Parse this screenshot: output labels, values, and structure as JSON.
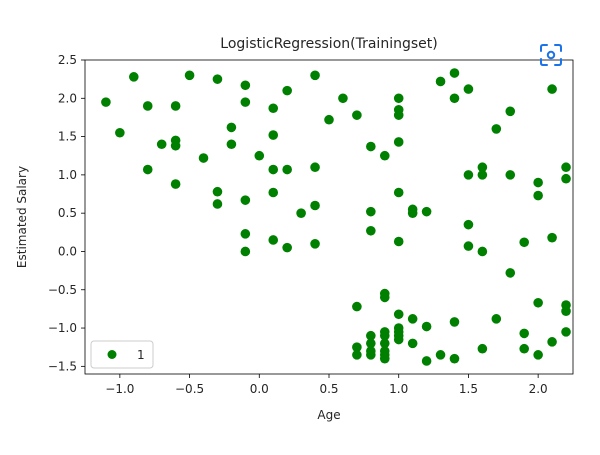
{
  "chart_data": {
    "type": "scatter",
    "title": "LogisticRegression(Trainingset)",
    "xlabel": "Age",
    "ylabel": "Estimated Salary",
    "xlim": [
      -1.25,
      2.25
    ],
    "ylim": [
      -1.6,
      2.5
    ],
    "xticks": [
      -1.0,
      -0.5,
      0.0,
      0.5,
      1.0,
      1.5,
      2.0
    ],
    "xtick_labels": [
      "−1.0",
      "−0.5",
      "0.0",
      "0.5",
      "1.0",
      "1.5",
      "2.0"
    ],
    "yticks": [
      2.5,
      2.0,
      1.5,
      1.0,
      0.5,
      0.0,
      -0.5,
      -1.0,
      -1.5
    ],
    "ytick_labels": [
      "2.5",
      "2.0",
      "1.5",
      "1.0",
      "0.5",
      "0.0",
      "−0.5",
      "−1.0",
      "−1.5"
    ],
    "grid": false,
    "legend_position": "lower-left",
    "series": [
      {
        "name": "1",
        "color": "#008000",
        "points": [
          [
            -1.1,
            1.95
          ],
          [
            -1.0,
            1.55
          ],
          [
            -0.9,
            2.28
          ],
          [
            -0.8,
            1.9
          ],
          [
            -0.8,
            1.07
          ],
          [
            -0.7,
            1.4
          ],
          [
            -0.6,
            1.9
          ],
          [
            -0.6,
            1.45
          ],
          [
            -0.6,
            1.38
          ],
          [
            -0.6,
            0.88
          ],
          [
            -0.5,
            2.3
          ],
          [
            -0.4,
            1.22
          ],
          [
            -0.3,
            2.25
          ],
          [
            -0.3,
            0.78
          ],
          [
            -0.3,
            0.62
          ],
          [
            -0.2,
            1.62
          ],
          [
            -0.2,
            1.4
          ],
          [
            -0.1,
            2.17
          ],
          [
            -0.1,
            1.95
          ],
          [
            -0.1,
            0.67
          ],
          [
            -0.1,
            0.23
          ],
          [
            -0.1,
            0.0
          ],
          [
            0.0,
            1.25
          ],
          [
            0.1,
            1.87
          ],
          [
            0.1,
            1.52
          ],
          [
            0.1,
            1.07
          ],
          [
            0.1,
            0.77
          ],
          [
            0.1,
            0.15
          ],
          [
            0.2,
            2.1
          ],
          [
            0.2,
            1.07
          ],
          [
            0.2,
            0.05
          ],
          [
            0.3,
            0.5
          ],
          [
            0.4,
            2.3
          ],
          [
            0.4,
            1.1
          ],
          [
            0.4,
            0.6
          ],
          [
            0.4,
            0.1
          ],
          [
            0.5,
            1.72
          ],
          [
            0.6,
            2.0
          ],
          [
            0.7,
            1.78
          ],
          [
            0.7,
            -0.72
          ],
          [
            0.7,
            -1.25
          ],
          [
            0.7,
            -1.35
          ],
          [
            0.8,
            1.37
          ],
          [
            0.8,
            0.52
          ],
          [
            0.8,
            0.27
          ],
          [
            0.8,
            -1.1
          ],
          [
            0.8,
            -1.2
          ],
          [
            0.8,
            -1.3
          ],
          [
            0.8,
            -1.35
          ],
          [
            0.9,
            1.25
          ],
          [
            0.9,
            -0.55
          ],
          [
            0.9,
            -0.6
          ],
          [
            0.9,
            -1.05
          ],
          [
            0.9,
            -1.1
          ],
          [
            0.9,
            -1.2
          ],
          [
            0.9,
            -1.3
          ],
          [
            0.9,
            -1.35
          ],
          [
            0.9,
            -1.4
          ],
          [
            1.0,
            2.0
          ],
          [
            1.0,
            1.85
          ],
          [
            1.0,
            1.78
          ],
          [
            1.0,
            1.43
          ],
          [
            1.0,
            0.77
          ],
          [
            1.0,
            0.13
          ],
          [
            1.0,
            -0.82
          ],
          [
            1.0,
            -1.0
          ],
          [
            1.0,
            -1.05
          ],
          [
            1.0,
            -1.1
          ],
          [
            1.0,
            -1.15
          ],
          [
            1.1,
            0.55
          ],
          [
            1.1,
            0.5
          ],
          [
            1.1,
            -0.88
          ],
          [
            1.1,
            -1.2
          ],
          [
            1.2,
            0.52
          ],
          [
            1.2,
            -0.98
          ],
          [
            1.2,
            -1.43
          ],
          [
            1.3,
            2.22
          ],
          [
            1.3,
            -1.35
          ],
          [
            1.4,
            2.33
          ],
          [
            1.4,
            2.0
          ],
          [
            1.4,
            -0.92
          ],
          [
            1.4,
            -1.4
          ],
          [
            1.5,
            2.12
          ],
          [
            1.5,
            1.0
          ],
          [
            1.5,
            0.35
          ],
          [
            1.5,
            0.07
          ],
          [
            1.6,
            1.1
          ],
          [
            1.6,
            1.0
          ],
          [
            1.6,
            0.0
          ],
          [
            1.6,
            -1.27
          ],
          [
            1.7,
            1.6
          ],
          [
            1.7,
            -0.88
          ],
          [
            1.8,
            1.83
          ],
          [
            1.8,
            1.0
          ],
          [
            1.8,
            -0.28
          ],
          [
            1.9,
            0.12
          ],
          [
            1.9,
            -1.07
          ],
          [
            1.9,
            -1.27
          ],
          [
            2.0,
            0.9
          ],
          [
            2.0,
            0.73
          ],
          [
            2.0,
            -0.67
          ],
          [
            2.0,
            -1.35
          ],
          [
            2.1,
            2.12
          ],
          [
            2.1,
            0.18
          ],
          [
            2.1,
            -1.18
          ],
          [
            2.2,
            1.1
          ],
          [
            2.2,
            0.95
          ],
          [
            2.2,
            -0.7
          ],
          [
            2.2,
            -0.78
          ],
          [
            2.2,
            -1.05
          ]
        ]
      }
    ]
  },
  "ui": {
    "scan_icon_color": "#1a73e8"
  }
}
